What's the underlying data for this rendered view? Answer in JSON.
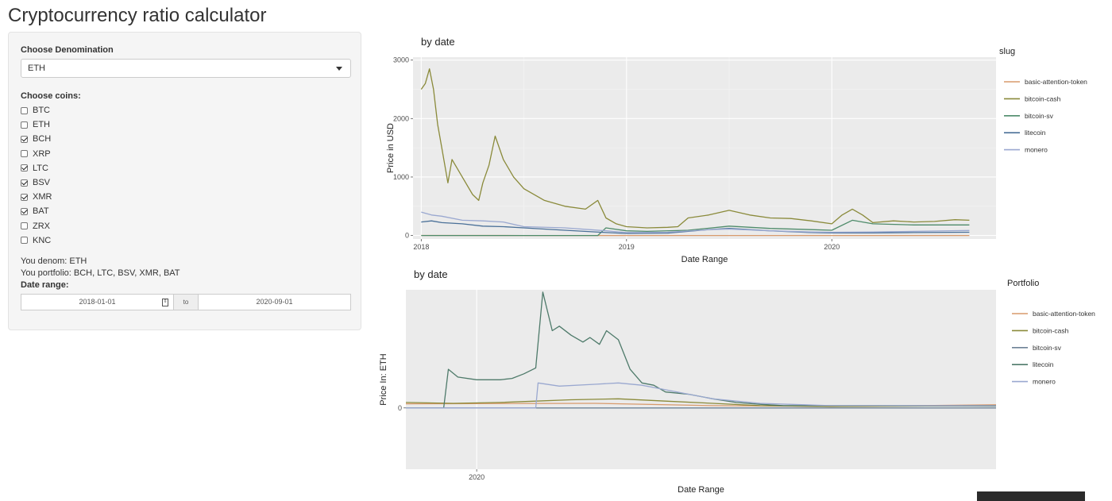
{
  "app": {
    "title": "Cryptocurrency ratio calculator"
  },
  "sidebar": {
    "denomination_label": "Choose Denomination",
    "denomination_value": "ETH",
    "coins_label": "Choose coins:",
    "coins": [
      {
        "label": "BTC",
        "checked": false
      },
      {
        "label": "ETH",
        "checked": false
      },
      {
        "label": "BCH",
        "checked": true
      },
      {
        "label": "XRP",
        "checked": false
      },
      {
        "label": "LTC",
        "checked": true
      },
      {
        "label": "BSV",
        "checked": true
      },
      {
        "label": "XMR",
        "checked": true
      },
      {
        "label": "BAT",
        "checked": true
      },
      {
        "label": "ZRX",
        "checked": false
      },
      {
        "label": "KNC",
        "checked": false
      }
    ],
    "denom_text": "You denom: ETH",
    "portfolio_text": "You portfolio: BCH, LTC, BSV, XMR, BAT",
    "date_range_label": "Date range:",
    "date_start": "2018-01-01",
    "date_to": "to",
    "date_end": "2020-09-01"
  },
  "chart_data": [
    {
      "type": "line",
      "title": "by date",
      "xlabel": "Date Range",
      "ylabel": "Price in USD",
      "xlim": [
        2017.96,
        2020.8
      ],
      "ylim": [
        -60,
        3050
      ],
      "x_ticks": [
        2018,
        2019,
        2020
      ],
      "y_ticks": [
        0,
        1000,
        2000,
        3000
      ],
      "legend_title": "slug",
      "legend_position": "right",
      "grid": true,
      "series": [
        {
          "name": "basic-attention-token",
          "color": "#d89a6c",
          "x": [
            2018.0,
            2018.5,
            2019.0,
            2019.5,
            2020.0,
            2020.67
          ],
          "y": [
            0.5,
            0.3,
            0.15,
            0.3,
            0.2,
            0.25
          ]
        },
        {
          "name": "bitcoin-cash",
          "color": "#8a8a3a",
          "x": [
            2018.0,
            2018.02,
            2018.04,
            2018.06,
            2018.08,
            2018.1,
            2018.13,
            2018.15,
            2018.2,
            2018.25,
            2018.28,
            2018.3,
            2018.33,
            2018.36,
            2018.4,
            2018.45,
            2018.5,
            2018.6,
            2018.7,
            2018.8,
            2018.86,
            2018.9,
            2018.95,
            2019.0,
            2019.1,
            2019.2,
            2019.25,
            2019.3,
            2019.4,
            2019.5,
            2019.6,
            2019.7,
            2019.8,
            2019.9,
            2020.0,
            2020.05,
            2020.1,
            2020.15,
            2020.2,
            2020.3,
            2020.4,
            2020.5,
            2020.6,
            2020.67
          ],
          "y": [
            2500,
            2600,
            2850,
            2500,
            1900,
            1500,
            900,
            1300,
            1000,
            700,
            600,
            900,
            1200,
            1700,
            1300,
            1000,
            800,
            600,
            500,
            450,
            600,
            300,
            200,
            150,
            130,
            140,
            150,
            300,
            350,
            430,
            350,
            300,
            290,
            250,
            200,
            350,
            450,
            350,
            220,
            250,
            230,
            240,
            270,
            260
          ]
        },
        {
          "name": "bitcoin-sv",
          "color": "#4e8b6a",
          "x": [
            2018.0,
            2018.86,
            2018.9,
            2019.0,
            2019.1,
            2019.3,
            2019.5,
            2019.7,
            2019.9,
            2020.0,
            2020.1,
            2020.2,
            2020.4,
            2020.67
          ],
          "y": [
            0,
            0,
            130,
            80,
            70,
            90,
            160,
            120,
            100,
            90,
            260,
            200,
            180,
            180
          ]
        },
        {
          "name": "litecoin",
          "color": "#4a7098",
          "x": [
            2018.0,
            2018.05,
            2018.1,
            2018.2,
            2018.3,
            2018.4,
            2018.5,
            2018.7,
            2018.9,
            2019.0,
            2019.2,
            2019.4,
            2019.5,
            2019.7,
            2019.9,
            2020.0,
            2020.2,
            2020.4,
            2020.67
          ],
          "y": [
            230,
            250,
            220,
            200,
            160,
            150,
            130,
            90,
            50,
            35,
            40,
            100,
            120,
            80,
            50,
            45,
            45,
            50,
            55
          ]
        },
        {
          "name": "monero",
          "color": "#9aa8d0",
          "x": [
            2018.0,
            2018.05,
            2018.1,
            2018.2,
            2018.3,
            2018.4,
            2018.5,
            2018.7,
            2018.9,
            2019.0,
            2019.2,
            2019.4,
            2019.5,
            2019.7,
            2019.9,
            2020.0,
            2020.2,
            2020.4,
            2020.67
          ],
          "y": [
            400,
            350,
            330,
            260,
            250,
            230,
            150,
            130,
            80,
            50,
            55,
            100,
            110,
            80,
            60,
            55,
            60,
            70,
            85
          ]
        }
      ]
    },
    {
      "type": "line",
      "title": "by date",
      "xlabel": "Date Range",
      "ylabel": "Price In: ETH",
      "xlim": [
        2019.7,
        2022.2
      ],
      "ylim": [
        -1.35,
        2.6
      ],
      "x_ticks": [
        2020
      ],
      "y_ticks": [
        0
      ],
      "legend_title": "Portfolio",
      "legend_position": "right",
      "grid": true,
      "series": [
        {
          "name": "basic-attention-token",
          "color": "#d89a6c",
          "x": [
            2019.7,
            2020.5,
            2021.0,
            2021.5,
            2022.2
          ],
          "y": [
            0.09,
            0.1,
            0.05,
            0.03,
            0.07
          ]
        },
        {
          "name": "bitcoin-cash",
          "color": "#8a8a3a",
          "x": [
            2019.7,
            2019.9,
            2020.1,
            2020.25,
            2020.4,
            2020.6,
            2020.8,
            2021.0,
            2021.2,
            2021.5,
            2022.2
          ],
          "y": [
            0.12,
            0.1,
            0.12,
            0.15,
            0.18,
            0.2,
            0.15,
            0.1,
            0.05,
            0.03,
            0.05
          ]
        },
        {
          "name": "bitcoin-sv",
          "color": "#6e8296",
          "x": [
            2019.7,
            2022.2
          ],
          "y": [
            0.0,
            0.0
          ]
        },
        {
          "name": "litecoin",
          "color": "#4e7a6a",
          "x": [
            2019.7,
            2019.86,
            2019.88,
            2019.92,
            2020.0,
            2020.1,
            2020.15,
            2020.2,
            2020.25,
            2020.28,
            2020.32,
            2020.35,
            2020.4,
            2020.45,
            2020.48,
            2020.52,
            2020.55,
            2020.6,
            2020.65,
            2020.7,
            2020.75,
            2020.8,
            2020.9,
            2021.0,
            2021.1,
            2021.2,
            2021.3,
            2021.5,
            2021.7,
            2022.2
          ],
          "y": [
            0.0,
            0.0,
            0.85,
            0.68,
            0.62,
            0.62,
            0.65,
            0.75,
            0.88,
            2.55,
            1.7,
            1.8,
            1.6,
            1.45,
            1.55,
            1.4,
            1.7,
            1.5,
            0.85,
            0.55,
            0.5,
            0.35,
            0.3,
            0.2,
            0.12,
            0.08,
            0.05,
            0.05,
            0.05,
            0.04
          ]
        },
        {
          "name": "monero",
          "color": "#9aa8d0",
          "x": [
            2019.7,
            2020.25,
            2020.26,
            2020.35,
            2020.5,
            2020.6,
            2020.7,
            2020.8,
            2020.9,
            2021.0,
            2021.2,
            2021.5,
            2022.2
          ],
          "y": [
            0.0,
            0.0,
            0.55,
            0.48,
            0.52,
            0.55,
            0.5,
            0.4,
            0.3,
            0.2,
            0.1,
            0.05,
            0.05
          ]
        }
      ]
    }
  ]
}
